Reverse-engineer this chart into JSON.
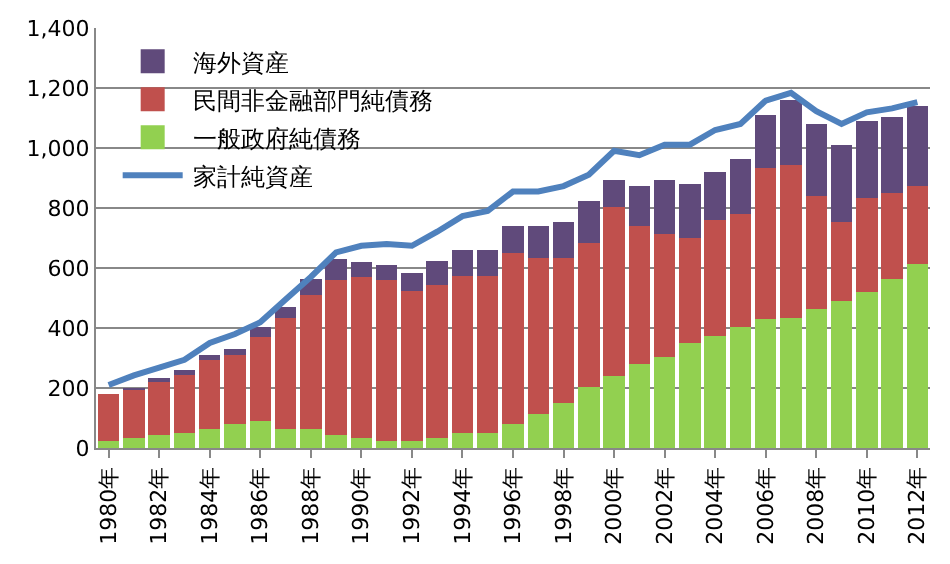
{
  "chart_data": {
    "type": "bar",
    "stacked": true,
    "categories": [
      "1980年",
      null,
      "1982年",
      null,
      "1984年",
      null,
      "1986年",
      null,
      "1988年",
      null,
      "1990年",
      null,
      "1992年",
      null,
      "1994年",
      null,
      "1996年",
      null,
      "1998年",
      null,
      "2000年",
      null,
      "2002年",
      null,
      "2004年",
      null,
      "2006年",
      null,
      "2008年",
      null,
      "2010年",
      null,
      "2012年"
    ],
    "series": [
      {
        "name": "一般政府純債務",
        "color": "#92d050",
        "values": [
          25,
          35,
          45,
          50,
          65,
          80,
          90,
          65,
          65,
          45,
          35,
          25,
          25,
          35,
          50,
          50,
          80,
          115,
          150,
          205,
          240,
          280,
          305,
          350,
          375,
          405,
          430,
          435,
          465,
          490,
          520,
          565,
          615
        ]
      },
      {
        "name": "民間非金融部門純債務",
        "color": "#c0504d",
        "values": [
          155,
          160,
          180,
          195,
          230,
          230,
          280,
          370,
          445,
          515,
          535,
          535,
          500,
          510,
          525,
          525,
          570,
          520,
          485,
          480,
          565,
          460,
          410,
          350,
          385,
          375,
          505,
          510,
          375,
          265,
          315,
          285,
          260
        ]
      },
      {
        "name": "海外資産",
        "color": "#604a7b",
        "values": [
          0,
          5,
          5,
          15,
          15,
          20,
          35,
          35,
          55,
          70,
          50,
          50,
          60,
          80,
          85,
          85,
          90,
          105,
          120,
          140,
          90,
          135,
          180,
          180,
          160,
          185,
          175,
          215,
          240,
          255,
          255,
          255,
          265
        ]
      },
      {
        "name": "家計純資産",
        "type": "line",
        "color": "#4f81bd",
        "values": [
          210,
          242,
          268,
          294,
          350,
          380,
          419,
          495,
          570,
          652,
          674,
          680,
          674,
          721,
          773,
          790,
          855,
          855,
          873,
          911,
          991,
          976,
          1011,
          1011,
          1060,
          1080,
          1158,
          1184,
          1123,
          1080,
          1119,
          1132,
          1153
        ]
      }
    ],
    "ylim": [
      0,
      1400
    ],
    "yticks": [
      0,
      {
        "value": 200,
        "label": "200"
      },
      {
        "value": 400,
        "label": "400"
      },
      {
        "value": 600,
        "label": "600"
      },
      {
        "value": 800,
        "label": "800"
      },
      {
        "value": 1000,
        "label": "1,000"
      },
      {
        "value": 1200,
        "label": "1,200"
      },
      {
        "value": 1400,
        "label": "1,400"
      }
    ],
    "grid": "y",
    "legend": "top left",
    "line_style": "solid",
    "marker": "none"
  }
}
